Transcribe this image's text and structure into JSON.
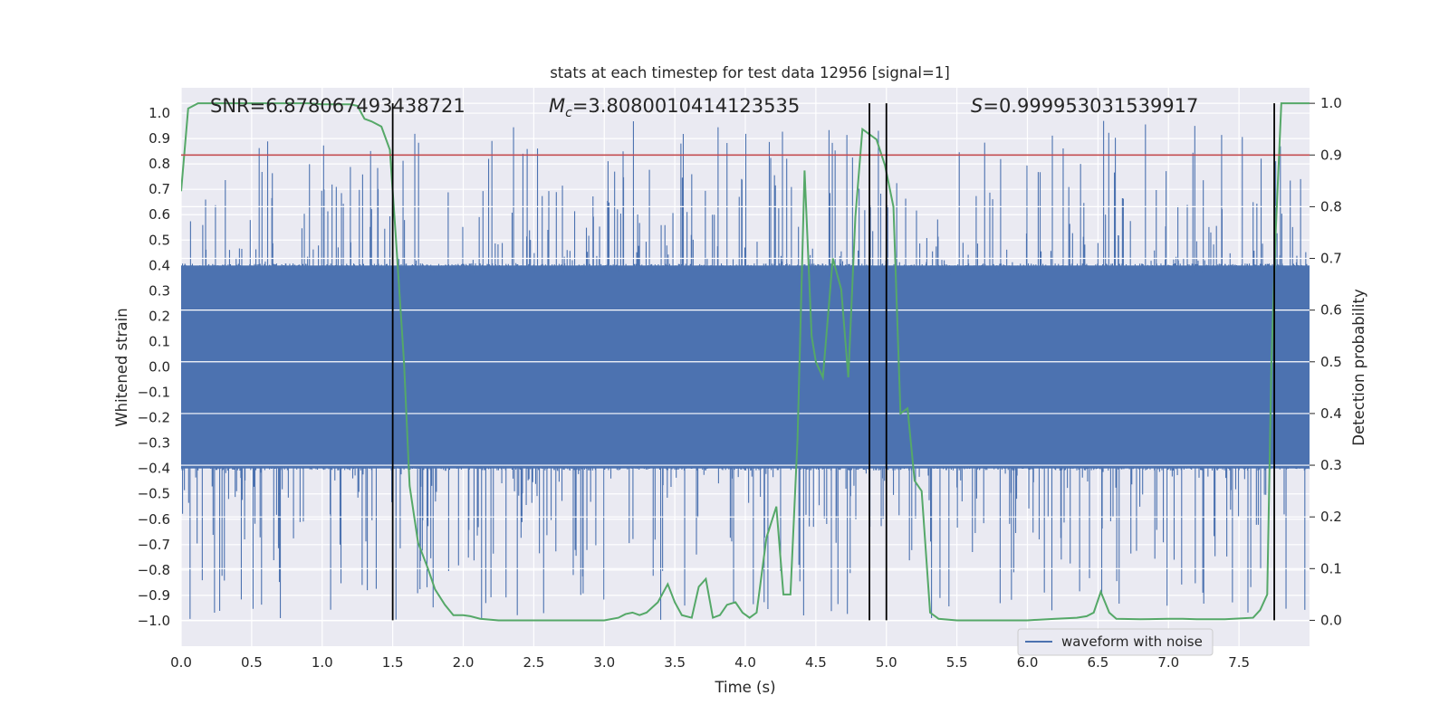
{
  "chart_data": {
    "type": "line",
    "title": "stats at each timestep for test data 12956 [signal=1]",
    "xlabel": "Time (s)",
    "ylabel_left": "Whitened strain",
    "ylabel_right": "Detection probability",
    "xlim": [
      0.0,
      8.0
    ],
    "ylim_left": [
      -1.1,
      1.1
    ],
    "ylim_right": [
      -0.05,
      1.03
    ],
    "x_ticks": [
      {
        "value": 0.0,
        "label": "0.0"
      },
      {
        "value": 0.5,
        "label": "0.5"
      },
      {
        "value": 1.0,
        "label": "1.0"
      },
      {
        "value": 1.5,
        "label": "1.5"
      },
      {
        "value": 2.0,
        "label": "2.0"
      },
      {
        "value": 2.5,
        "label": "2.5"
      },
      {
        "value": 3.0,
        "label": "3.0"
      },
      {
        "value": 3.5,
        "label": "3.5"
      },
      {
        "value": 4.0,
        "label": "4.0"
      },
      {
        "value": 4.5,
        "label": "4.5"
      },
      {
        "value": 5.0,
        "label": "5.0"
      },
      {
        "value": 5.5,
        "label": "5.5"
      },
      {
        "value": 6.0,
        "label": "6.0"
      },
      {
        "value": 6.5,
        "label": "6.5"
      },
      {
        "value": 7.0,
        "label": "7.0"
      },
      {
        "value": 7.5,
        "label": "7.5"
      }
    ],
    "y_left_ticks": [
      {
        "value": 1.0,
        "label": "1.0"
      },
      {
        "value": 0.9,
        "label": "0.9"
      },
      {
        "value": 0.8,
        "label": "0.8"
      },
      {
        "value": 0.7,
        "label": "0.7"
      },
      {
        "value": 0.6,
        "label": "0.6"
      },
      {
        "value": 0.5,
        "label": "0.5"
      },
      {
        "value": 0.4,
        "label": "0.4"
      },
      {
        "value": 0.3,
        "label": "0.3"
      },
      {
        "value": 0.2,
        "label": "0.2"
      },
      {
        "value": 0.1,
        "label": "0.1"
      },
      {
        "value": 0.0,
        "label": "0.0"
      },
      {
        "value": -0.1,
        "label": "−0.1"
      },
      {
        "value": -0.2,
        "label": "−0.2"
      },
      {
        "value": -0.3,
        "label": "−0.3"
      },
      {
        "value": -0.4,
        "label": "−0.4"
      },
      {
        "value": -0.5,
        "label": "−0.5"
      },
      {
        "value": -0.6,
        "label": "−0.6"
      },
      {
        "value": -0.7,
        "label": "−0.7"
      },
      {
        "value": -0.8,
        "label": "−0.8"
      },
      {
        "value": -0.9,
        "label": "−0.9"
      },
      {
        "value": -1.0,
        "label": "−1.0"
      }
    ],
    "y_right_ticks": [
      {
        "value": 1.0,
        "label": "1.0"
      },
      {
        "value": 0.9,
        "label": "0.9"
      },
      {
        "value": 0.8,
        "label": "0.8"
      },
      {
        "value": 0.7,
        "label": "0.7"
      },
      {
        "value": 0.6,
        "label": "0.6"
      },
      {
        "value": 0.5,
        "label": "0.5"
      },
      {
        "value": 0.4,
        "label": "0.4"
      },
      {
        "value": 0.3,
        "label": "0.3"
      },
      {
        "value": 0.2,
        "label": "0.2"
      },
      {
        "value": 0.1,
        "label": "0.1"
      },
      {
        "value": 0.0,
        "label": "0.0"
      }
    ],
    "annotations": {
      "snr": "SNR=6.878067493438721",
      "mc_symbol": "M",
      "mc_subscript": "c",
      "mc_value": "=3.8080010414123535",
      "s_symbol": "S",
      "s_value": "=0.999953031539917"
    },
    "threshold": {
      "value": 0.9,
      "axis": "right",
      "color": "#c44e52"
    },
    "vertical_lines": [
      1.5,
      4.88,
      5.0,
      7.75
    ],
    "legend": {
      "label": "waveform with noise",
      "position": "lower-right"
    },
    "colors": {
      "waveform": "#4c72b0",
      "probability": "#55a868",
      "threshold": "#c44e52",
      "marker": "#000000",
      "plot_bg": "#eaeaf2",
      "grid": "#ffffff"
    },
    "series": [
      {
        "name": "waveform with noise",
        "axis": "left",
        "kind": "noise-envelope",
        "dense_band": [
          -0.4,
          0.4
        ],
        "max_abs": 1.0
      },
      {
        "name": "detection probability",
        "axis": "right",
        "x": [
          0.0,
          0.05,
          0.12,
          0.2,
          0.3,
          0.5,
          0.7,
          0.9,
          1.0,
          1.1,
          1.2,
          1.25,
          1.3,
          1.35,
          1.42,
          1.48,
          1.52,
          1.58,
          1.62,
          1.68,
          1.75,
          1.8,
          1.87,
          1.93,
          2.0,
          2.05,
          2.12,
          2.25,
          2.5,
          2.75,
          3.0,
          3.1,
          3.15,
          3.2,
          3.25,
          3.3,
          3.38,
          3.45,
          3.5,
          3.55,
          3.62,
          3.67,
          3.72,
          3.77,
          3.82,
          3.87,
          3.93,
          3.98,
          4.03,
          4.08,
          4.15,
          4.22,
          4.27,
          4.32,
          4.37,
          4.42,
          4.47,
          4.5,
          4.55,
          4.62,
          4.68,
          4.73,
          4.78,
          4.83,
          4.88,
          4.93,
          4.99,
          5.05,
          5.1,
          5.15,
          5.2,
          5.25,
          5.31,
          5.37,
          5.5,
          6.0,
          6.2,
          6.35,
          6.42,
          6.47,
          6.52,
          6.58,
          6.63,
          6.8,
          7.0,
          7.1,
          7.2,
          7.4,
          7.6,
          7.65,
          7.7,
          7.73,
          7.76,
          7.8,
          7.85,
          8.0
        ],
        "y": [
          0.83,
          0.99,
          1.0,
          1.0,
          1.0,
          1.0,
          1.0,
          1.0,
          0.998,
          0.998,
          0.998,
          0.995,
          0.97,
          0.965,
          0.955,
          0.91,
          0.75,
          0.5,
          0.26,
          0.15,
          0.1,
          0.06,
          0.03,
          0.01,
          0.01,
          0.008,
          0.003,
          0.0,
          0.0,
          0.0,
          0.0,
          0.005,
          0.012,
          0.015,
          0.01,
          0.015,
          0.035,
          0.07,
          0.035,
          0.01,
          0.005,
          0.065,
          0.08,
          0.005,
          0.01,
          0.03,
          0.035,
          0.015,
          0.005,
          0.015,
          0.16,
          0.22,
          0.05,
          0.05,
          0.35,
          0.87,
          0.55,
          0.5,
          0.47,
          0.7,
          0.64,
          0.47,
          0.78,
          0.95,
          0.94,
          0.93,
          0.88,
          0.8,
          0.4,
          0.41,
          0.27,
          0.25,
          0.015,
          0.003,
          0.0,
          0.0,
          0.003,
          0.005,
          0.008,
          0.015,
          0.055,
          0.015,
          0.003,
          0.002,
          0.003,
          0.003,
          0.002,
          0.002,
          0.005,
          0.02,
          0.05,
          0.5,
          0.75,
          1.0,
          1.0,
          1.0
        ]
      }
    ]
  }
}
